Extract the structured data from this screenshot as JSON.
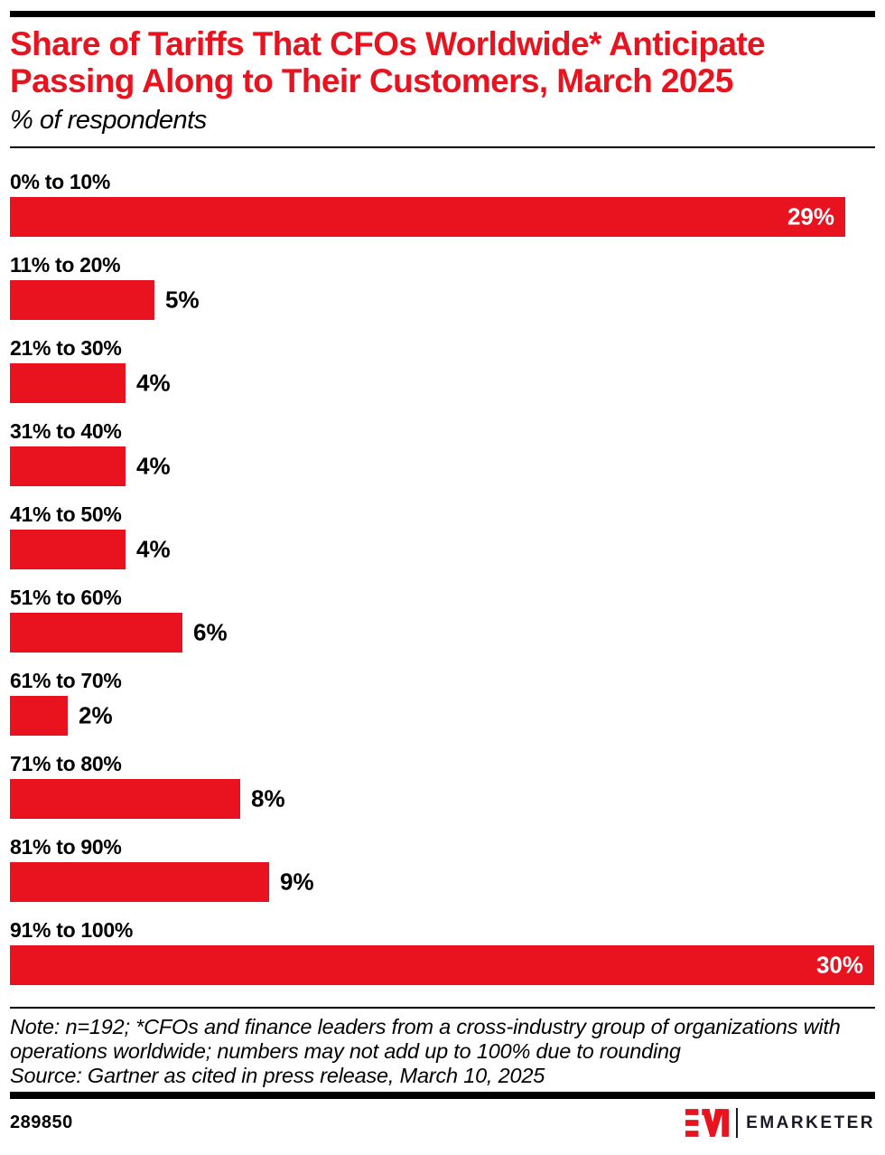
{
  "header": {
    "title_line1": "Share of Tariffs That CFOs Worldwide* Anticipate",
    "title_line2": "Passing Along to Their Customers, March 2025",
    "subtitle": "% of respondents"
  },
  "chart_data": {
    "type": "bar",
    "orientation": "horizontal",
    "title": "Share of Tariffs That CFOs Worldwide* Anticipate Passing Along to Their Customers, March 2025",
    "subtitle": "% of respondents",
    "categories": [
      "0% to 10%",
      "11% to 20%",
      "21% to 30%",
      "31% to 40%",
      "41% to 50%",
      "51% to 60%",
      "61% to 70%",
      "71% to 80%",
      "81% to 90%",
      "91% to 100%"
    ],
    "values": [
      29,
      5,
      4,
      4,
      4,
      6,
      2,
      8,
      9,
      30
    ],
    "value_labels": [
      "29%",
      "5%",
      "4%",
      "4%",
      "4%",
      "6%",
      "2%",
      "8%",
      "9%",
      "30%"
    ],
    "unit": "% of respondents",
    "xlim": [
      0,
      30
    ],
    "grid": false,
    "legend": false,
    "bar_color": "#e8131f",
    "inside_value_label_color": "#ffffff",
    "outside_value_label_color": "#000000"
  },
  "notes": {
    "note_line1": "Note: n=192; *CFOs and finance leaders from a cross-industry group of organizations with",
    "note_line2": "operations worldwide; numbers may not add up to 100% due to rounding",
    "source_line": "Source: Gartner as cited in press release, March 10, 2025"
  },
  "footer": {
    "chart_id": "289850",
    "brand_name": "EMARKETER",
    "logo_icon": "emarketer-em-icon"
  },
  "colors": {
    "accent_red": "#e8131f",
    "rule_black": "#000000",
    "wordmark_dark": "#1a1a26"
  }
}
